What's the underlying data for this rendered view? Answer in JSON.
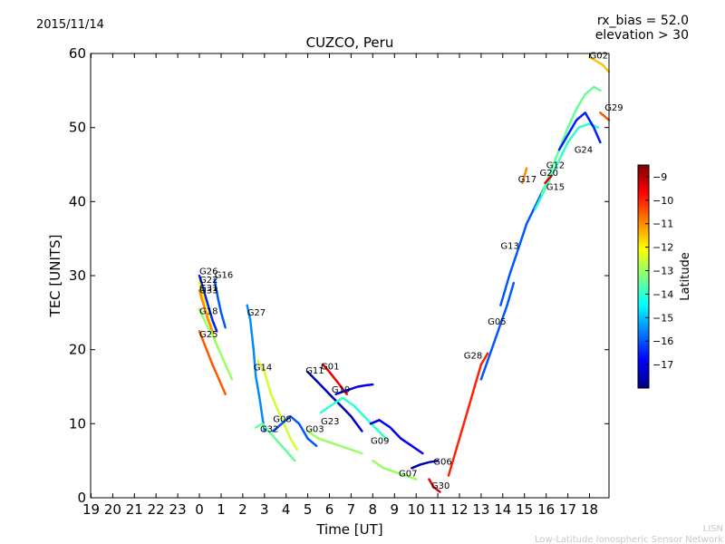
{
  "header": {
    "date": "2015/11/14",
    "rx_bias": "rx_bias = 52.0",
    "elevation": "elevation > 30"
  },
  "footer": {
    "network_short": "LISN",
    "network_long": "Low-Latitude Ionospheric Sensor Network"
  },
  "chart_data": {
    "type": "scatter",
    "title": "CUZCO, Peru",
    "xlabel": "Time [UT]",
    "ylabel": "TEC [UNITS]",
    "x_tick_labels": [
      "19",
      "20",
      "21",
      "22",
      "23",
      "0",
      "1",
      "2",
      "3",
      "4",
      "5",
      "6",
      "7",
      "8",
      "9",
      "10",
      "11",
      "12",
      "13",
      "14",
      "15",
      "16",
      "17",
      "18"
    ],
    "xlim": [
      18.98,
      42.9
    ],
    "ylim": [
      0,
      60
    ],
    "y_ticks": [
      0,
      10,
      20,
      30,
      40,
      50,
      60
    ],
    "grid": false,
    "colorbar": {
      "label": "Latitude",
      "range": [
        -18,
        -8.5
      ],
      "ticks": [
        -9,
        -10,
        -11,
        -12,
        -13,
        -14,
        -15,
        -16,
        -17
      ],
      "colormap": "jet",
      "colors": [
        "#00007f",
        "#0000ff",
        "#007fff",
        "#00ffff",
        "#7fff7f",
        "#ffff00",
        "#ff7f00",
        "#ff0000",
        "#7f0000"
      ]
    },
    "series": [
      {
        "name": "G26",
        "lat": -16.5,
        "points": [
          [
            24.0,
            30.0
          ],
          [
            24.2,
            28.0
          ],
          [
            24.4,
            26.0
          ],
          [
            24.6,
            24.0
          ],
          [
            24.8,
            22.5
          ]
        ]
      },
      {
        "name": "G22",
        "lat": -12.0,
        "points": [
          [
            24.0,
            29.0
          ],
          [
            24.15,
            27.5
          ],
          [
            24.3,
            25.5
          ],
          [
            24.5,
            23.5
          ],
          [
            24.7,
            21.5
          ]
        ]
      },
      {
        "name": "G16",
        "lat": -16.0,
        "points": [
          [
            24.7,
            29.5
          ],
          [
            24.85,
            27.0
          ],
          [
            25.0,
            25.0
          ],
          [
            25.2,
            23.0
          ]
        ]
      },
      {
        "name": "G31",
        "lat": -11.0,
        "points": [
          [
            24.0,
            28.0
          ],
          [
            24.2,
            26.0
          ],
          [
            24.4,
            24.0
          ],
          [
            24.6,
            22.5
          ]
        ]
      },
      {
        "name": "G18",
        "lat": -13.0,
        "points": [
          [
            24.0,
            25.5
          ],
          [
            24.3,
            23.5
          ],
          [
            24.6,
            22.0
          ],
          [
            24.9,
            20.0
          ],
          [
            25.2,
            18.0
          ],
          [
            25.5,
            16.0
          ]
        ]
      },
      {
        "name": "G25",
        "lat": -10.5,
        "points": [
          [
            24.0,
            22.5
          ],
          [
            24.2,
            21.0
          ],
          [
            24.4,
            19.5
          ],
          [
            24.6,
            18.0
          ],
          [
            24.9,
            16.0
          ],
          [
            25.2,
            14.0
          ]
        ]
      },
      {
        "name": "G27",
        "lat": -15.5,
        "points": [
          [
            26.2,
            26.0
          ],
          [
            26.35,
            24.0
          ],
          [
            26.5,
            20.0
          ],
          [
            26.6,
            16.5
          ],
          [
            26.8,
            13.0
          ],
          [
            27.0,
            9.0
          ]
        ]
      },
      {
        "name": "G14",
        "lat": -12.5,
        "points": [
          [
            26.7,
            18.5
          ],
          [
            27.0,
            17.0
          ],
          [
            27.3,
            14.0
          ],
          [
            27.6,
            12.0
          ],
          [
            27.9,
            10.0
          ],
          [
            28.2,
            8.0
          ],
          [
            28.5,
            6.5
          ]
        ]
      },
      {
        "name": "G32",
        "lat": -13.5,
        "points": [
          [
            26.6,
            9.5
          ],
          [
            26.9,
            10.0
          ],
          [
            27.2,
            9.0
          ],
          [
            27.5,
            8.0
          ],
          [
            27.8,
            7.0
          ],
          [
            28.1,
            6.0
          ],
          [
            28.4,
            5.0
          ]
        ]
      },
      {
        "name": "G08",
        "lat": -16.0,
        "points": [
          [
            27.4,
            9.0
          ],
          [
            27.8,
            10.0
          ],
          [
            28.2,
            11.0
          ],
          [
            28.6,
            10.0
          ],
          [
            29.0,
            8.0
          ],
          [
            29.4,
            7.0
          ]
        ]
      },
      {
        "name": "G11",
        "lat": -17.5,
        "points": [
          [
            29.0,
            17.0
          ],
          [
            29.5,
            15.5
          ],
          [
            30.0,
            14.0
          ],
          [
            30.5,
            12.5
          ],
          [
            31.0,
            11.0
          ],
          [
            31.5,
            9.0
          ]
        ]
      },
      {
        "name": "G01",
        "lat": -9.5,
        "points": [
          [
            29.7,
            18.0
          ],
          [
            30.0,
            17.0
          ],
          [
            30.4,
            15.5
          ],
          [
            30.8,
            14.0
          ]
        ]
      },
      {
        "name": "G19",
        "lat": -17.0,
        "points": [
          [
            30.3,
            14.0
          ],
          [
            30.8,
            14.5
          ],
          [
            31.3,
            15.0
          ],
          [
            31.7,
            15.2
          ],
          [
            32.0,
            15.3
          ]
        ]
      },
      {
        "name": "G23",
        "lat": -14.0,
        "points": [
          [
            29.6,
            11.5
          ],
          [
            30.1,
            12.5
          ],
          [
            30.6,
            13.5
          ],
          [
            31.1,
            12.5
          ],
          [
            31.6,
            11.0
          ],
          [
            32.1,
            9.5
          ],
          [
            32.6,
            8.0
          ]
        ]
      },
      {
        "name": "G03",
        "lat": -13.0,
        "points": [
          [
            29.0,
            9.0
          ],
          [
            29.5,
            8.0
          ],
          [
            30.0,
            7.5
          ],
          [
            30.5,
            7.0
          ],
          [
            31.0,
            6.5
          ],
          [
            31.5,
            6.0
          ]
        ]
      },
      {
        "name": "G09",
        "lat": -17.0,
        "points": [
          [
            31.9,
            10.0
          ],
          [
            32.3,
            10.5
          ],
          [
            32.8,
            9.5
          ],
          [
            33.3,
            8.0
          ],
          [
            33.8,
            7.0
          ],
          [
            34.3,
            6.0
          ]
        ]
      },
      {
        "name": "G07",
        "lat": -13.0,
        "points": [
          [
            32.0,
            5.0
          ],
          [
            32.5,
            4.0
          ],
          [
            33.0,
            3.5
          ],
          [
            33.5,
            3.0
          ],
          [
            34.0,
            2.5
          ]
        ]
      },
      {
        "name": "G06",
        "lat": -17.5,
        "points": [
          [
            33.8,
            4.0
          ],
          [
            34.2,
            4.5
          ],
          [
            34.6,
            4.8
          ],
          [
            35.0,
            5.0
          ]
        ]
      },
      {
        "name": "G30",
        "lat": -9.5,
        "points": [
          [
            34.6,
            2.5
          ],
          [
            34.8,
            1.5
          ],
          [
            35.0,
            1.0
          ],
          [
            35.1,
            0.8
          ]
        ]
      },
      {
        "name": "G28",
        "lat": -10.0,
        "points": [
          [
            35.5,
            3.0
          ],
          [
            35.9,
            7.0
          ],
          [
            36.3,
            11.0
          ],
          [
            36.7,
            15.0
          ],
          [
            37.0,
            18.0
          ],
          [
            37.3,
            19.5
          ]
        ]
      },
      {
        "name": "G05",
        "lat": -16.0,
        "points": [
          [
            37.0,
            16.0
          ],
          [
            37.3,
            18.5
          ],
          [
            37.6,
            21.0
          ],
          [
            37.9,
            23.5
          ],
          [
            38.2,
            26.0
          ],
          [
            38.5,
            29.0
          ]
        ]
      },
      {
        "name": "G13",
        "lat": -16.0,
        "points": [
          [
            37.9,
            26.0
          ],
          [
            38.3,
            30.0
          ],
          [
            38.7,
            33.5
          ],
          [
            39.1,
            37.0
          ],
          [
            39.6,
            40.0
          ],
          [
            40.1,
            43.0
          ]
        ]
      },
      {
        "name": "G17",
        "lat": -11.0,
        "points": [
          [
            38.9,
            42.5
          ],
          [
            39.0,
            43.5
          ],
          [
            39.1,
            44.5
          ]
        ]
      },
      {
        "name": "G20",
        "lat": -14.0,
        "points": [
          [
            39.5,
            39.0
          ],
          [
            40.0,
            42.0
          ],
          [
            40.5,
            45.0
          ],
          [
            41.0,
            48.0
          ],
          [
            41.5,
            50.0
          ],
          [
            42.0,
            50.5
          ],
          [
            42.4,
            50.0
          ]
        ]
      },
      {
        "name": "G12",
        "lat": -13.5,
        "points": [
          [
            39.8,
            41.0
          ],
          [
            40.2,
            44.0
          ],
          [
            40.6,
            47.0
          ],
          [
            41.0,
            50.0
          ],
          [
            41.4,
            52.5
          ],
          [
            41.8,
            54.5
          ],
          [
            42.2,
            55.5
          ],
          [
            42.5,
            55.0
          ]
        ]
      },
      {
        "name": "G15",
        "lat": -9.5,
        "points": [
          [
            39.95,
            42.5
          ],
          [
            40.1,
            43.0
          ],
          [
            40.25,
            43.5
          ]
        ]
      },
      {
        "name": "G24",
        "lat": -16.5,
        "points": [
          [
            40.6,
            47.0
          ],
          [
            41.0,
            49.0
          ],
          [
            41.4,
            51.0
          ],
          [
            41.8,
            52.0
          ],
          [
            42.2,
            50.0
          ],
          [
            42.5,
            48.0
          ]
        ]
      },
      {
        "name": "G02",
        "lat": -11.5,
        "points": [
          [
            42.0,
            59.5
          ],
          [
            42.3,
            59.0
          ],
          [
            42.6,
            58.5
          ],
          [
            42.9,
            57.5
          ]
        ]
      },
      {
        "name": "G29",
        "lat": -10.5,
        "points": [
          [
            42.5,
            52.0
          ],
          [
            42.7,
            51.5
          ],
          [
            42.9,
            51.0
          ]
        ]
      }
    ],
    "prn_labels": [
      {
        "text": "G26",
        "x": 24.0,
        "y": 30.2
      },
      {
        "text": "G22",
        "x": 24.0,
        "y": 29.0
      },
      {
        "text": "G16",
        "x": 24.7,
        "y": 29.7
      },
      {
        "text": "G31",
        "x": 24.0,
        "y": 27.9
      },
      {
        "text": "G33",
        "x": 24.0,
        "y": 27.6
      },
      {
        "text": "G18",
        "x": 24.0,
        "y": 24.8
      },
      {
        "text": "G27",
        "x": 26.2,
        "y": 24.6
      },
      {
        "text": "G25",
        "x": 24.0,
        "y": 21.7
      },
      {
        "text": "G14",
        "x": 26.5,
        "y": 17.2
      },
      {
        "text": "G11",
        "x": 28.9,
        "y": 16.8
      },
      {
        "text": "G01",
        "x": 29.6,
        "y": 17.3
      },
      {
        "text": "G19",
        "x": 30.1,
        "y": 14.2
      },
      {
        "text": "G08",
        "x": 27.4,
        "y": 10.2
      },
      {
        "text": "G23",
        "x": 29.6,
        "y": 9.9
      },
      {
        "text": "G32",
        "x": 26.8,
        "y": 8.9
      },
      {
        "text": "G03",
        "x": 28.9,
        "y": 8.9
      },
      {
        "text": "G09",
        "x": 31.9,
        "y": 7.3
      },
      {
        "text": "G07",
        "x": 33.2,
        "y": 2.9
      },
      {
        "text": "G06",
        "x": 34.8,
        "y": 4.5
      },
      {
        "text": "G30",
        "x": 34.7,
        "y": 1.2
      },
      {
        "text": "G28",
        "x": 36.2,
        "y": 18.8
      },
      {
        "text": "G05",
        "x": 37.3,
        "y": 23.4
      },
      {
        "text": "G13",
        "x": 37.9,
        "y": 33.6
      },
      {
        "text": "G17",
        "x": 38.7,
        "y": 42.6
      },
      {
        "text": "G20",
        "x": 39.7,
        "y": 43.5
      },
      {
        "text": "G12",
        "x": 40.0,
        "y": 44.5
      },
      {
        "text": "G15",
        "x": 40.0,
        "y": 41.6
      },
      {
        "text": "G24",
        "x": 41.3,
        "y": 46.6
      },
      {
        "text": "G02",
        "x": 42.0,
        "y": 59.3
      },
      {
        "text": "G29",
        "x": 42.7,
        "y": 52.3
      }
    ]
  }
}
